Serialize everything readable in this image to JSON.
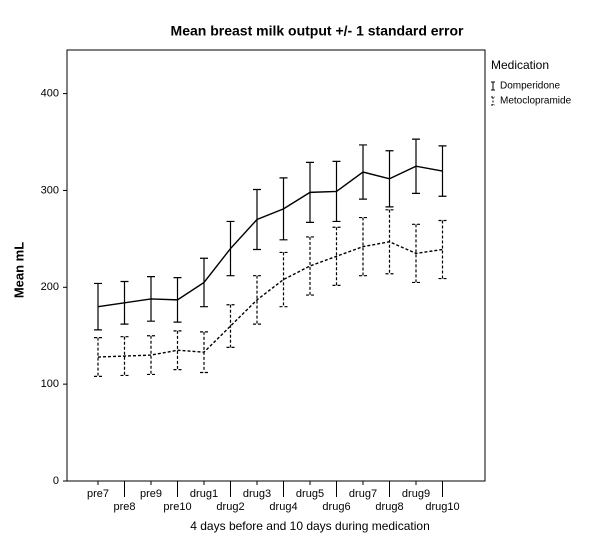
{
  "chart_data": {
    "type": "line",
    "title": "Mean breast milk output +/- 1 standard error",
    "x_label": "4 days before and 10 days during medication",
    "y_label": "Mean mL",
    "categories": [
      "pre7",
      "pre8",
      "pre9",
      "pre10",
      "drug1",
      "drug2",
      "drug3",
      "drug4",
      "drug5",
      "drug6",
      "drug7",
      "drug8",
      "drug9",
      "drug10"
    ],
    "ylim": [
      0,
      445
    ],
    "yticks": [
      0,
      100,
      200,
      300,
      400
    ],
    "legend_title": "Medication",
    "legend_position": "right",
    "series": [
      {
        "name": "Domperidone",
        "color": "#000000",
        "line_style": "solid",
        "values": [
          180,
          184,
          188,
          187,
          205,
          240,
          270,
          281,
          298,
          299,
          319,
          312,
          325,
          320
        ],
        "errors": [
          24,
          22,
          23,
          23,
          25,
          28,
          31,
          32,
          31,
          31,
          28,
          29,
          28,
          26
        ]
      },
      {
        "name": "Metoclopramide",
        "color": "#000000",
        "line_style": "dashed",
        "values": [
          128,
          129,
          130,
          135,
          133,
          160,
          187,
          208,
          222,
          232,
          242,
          247,
          235,
          239
        ],
        "errors": [
          20,
          20,
          20,
          20,
          21,
          22,
          25,
          28,
          30,
          30,
          30,
          33,
          30,
          30
        ]
      }
    ]
  }
}
